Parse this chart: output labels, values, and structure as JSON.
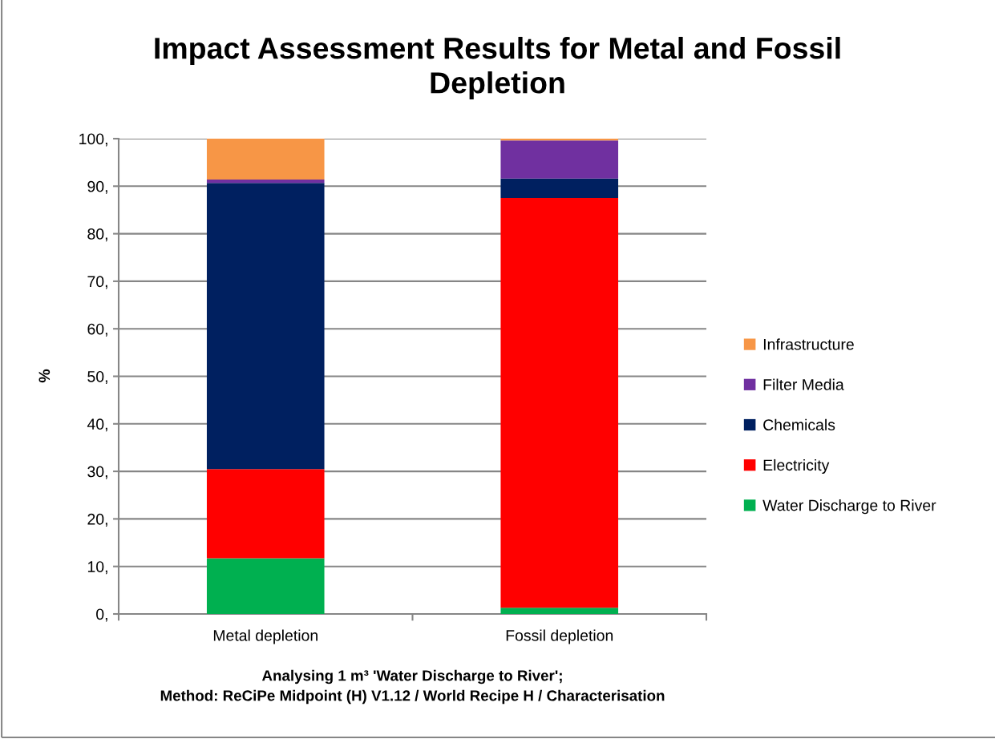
{
  "chart_data": {
    "type": "bar",
    "title": "Impact Assessment Results for Metal and Fossil\nDepletion",
    "xlabel": "Analysing 1 m³ 'Water Discharge to River';\nMethod: ReCiPe Midpoint (H) V1.12 / World Recipe H / Characterisation",
    "ylabel": "%",
    "categories": [
      "Metal depletion",
      "Fossil depletion"
    ],
    "stacked": true,
    "series": [
      {
        "name": "Water Discharge to River",
        "color": "#00b050",
        "values": [
          11.7,
          1.3
        ]
      },
      {
        "name": "Electricity",
        "color": "#ff0000",
        "values": [
          18.8,
          86.2
        ]
      },
      {
        "name": "Chemicals",
        "color": "#002060",
        "values": [
          60.2,
          4.1
        ]
      },
      {
        "name": "Filter Media",
        "color": "#7030a0",
        "values": [
          0.7,
          8.0
        ]
      },
      {
        "name": "Infrastructure",
        "color": "#f79646",
        "values": [
          8.6,
          0.4
        ]
      }
    ],
    "ylim": [
      0,
      100
    ],
    "yticks": [
      {
        "value": 0,
        "label": "0,"
      },
      {
        "value": 10,
        "label": "10,"
      },
      {
        "value": 20,
        "label": "20,"
      },
      {
        "value": 30,
        "label": "30,"
      },
      {
        "value": 40,
        "label": "40,"
      },
      {
        "value": 50,
        "label": "50,"
      },
      {
        "value": 60,
        "label": "60,"
      },
      {
        "value": 70,
        "label": "70,"
      },
      {
        "value": 80,
        "label": "80,"
      },
      {
        "value": 90,
        "label": "90,"
      },
      {
        "value": 100,
        "label": "100,"
      }
    ],
    "grid": "y",
    "legend": "right"
  }
}
